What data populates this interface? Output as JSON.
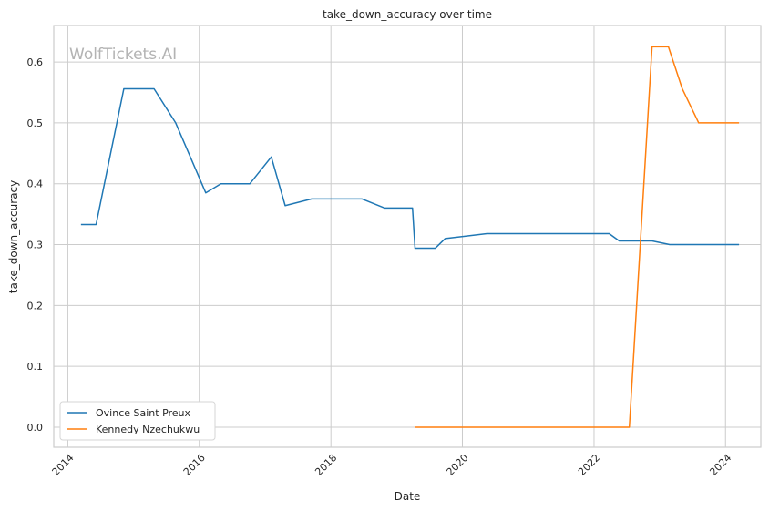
{
  "chart_data": {
    "type": "line",
    "title": "take_down_accuracy over time",
    "xlabel": "Date",
    "ylabel": "take_down_accuracy",
    "x_ticks": [
      "2014",
      "2016",
      "2018",
      "2020",
      "2022",
      "2024"
    ],
    "y_ticks": [
      "0.0",
      "0.1",
      "0.2",
      "0.3",
      "0.4",
      "0.5",
      "0.6"
    ],
    "xlim": [
      "2013-10-15",
      "2024-07-15"
    ],
    "ylim": [
      -0.033,
      0.66
    ],
    "grid": true,
    "legend_position": "lower-left",
    "watermark": "WolfTickets.AI",
    "series": [
      {
        "name": "Ovince Saint Preux",
        "color": "#1f77b4",
        "points": [
          {
            "x": "2014-03-15",
            "y": 0.333
          },
          {
            "x": "2014-06-07",
            "y": 0.333
          },
          {
            "x": "2014-11-08",
            "y": 0.556
          },
          {
            "x": "2015-04-25",
            "y": 0.556
          },
          {
            "x": "2015-08-23",
            "y": 0.5
          },
          {
            "x": "2016-02-06",
            "y": 0.385
          },
          {
            "x": "2016-04-30",
            "y": 0.4
          },
          {
            "x": "2016-10-08",
            "y": 0.4
          },
          {
            "x": "2017-02-04",
            "y": 0.444
          },
          {
            "x": "2017-04-22",
            "y": 0.364
          },
          {
            "x": "2017-09-16",
            "y": 0.375
          },
          {
            "x": "2018-06-23",
            "y": 0.375
          },
          {
            "x": "2018-10-27",
            "y": 0.36
          },
          {
            "x": "2019-03-30",
            "y": 0.36
          },
          {
            "x": "2019-04-13",
            "y": 0.294
          },
          {
            "x": "2019-08-03",
            "y": 0.294
          },
          {
            "x": "2019-09-28",
            "y": 0.31
          },
          {
            "x": "2020-05-16",
            "y": 0.318
          },
          {
            "x": "2022-03-26",
            "y": 0.318
          },
          {
            "x": "2022-05-21",
            "y": 0.306
          },
          {
            "x": "2022-11-19",
            "y": 0.306
          },
          {
            "x": "2023-02-25",
            "y": 0.3
          },
          {
            "x": "2024-03-16",
            "y": 0.3
          }
        ]
      },
      {
        "name": "Kennedy Nzechukwu",
        "color": "#ff7f0e",
        "points": [
          {
            "x": "2019-04-13",
            "y": 0.0
          },
          {
            "x": "2022-07-16",
            "y": 0.0
          },
          {
            "x": "2022-11-19",
            "y": 0.625
          },
          {
            "x": "2023-02-18",
            "y": 0.625
          },
          {
            "x": "2023-05-06",
            "y": 0.556
          },
          {
            "x": "2023-08-05",
            "y": 0.5
          },
          {
            "x": "2024-03-16",
            "y": 0.5
          }
        ]
      }
    ]
  }
}
